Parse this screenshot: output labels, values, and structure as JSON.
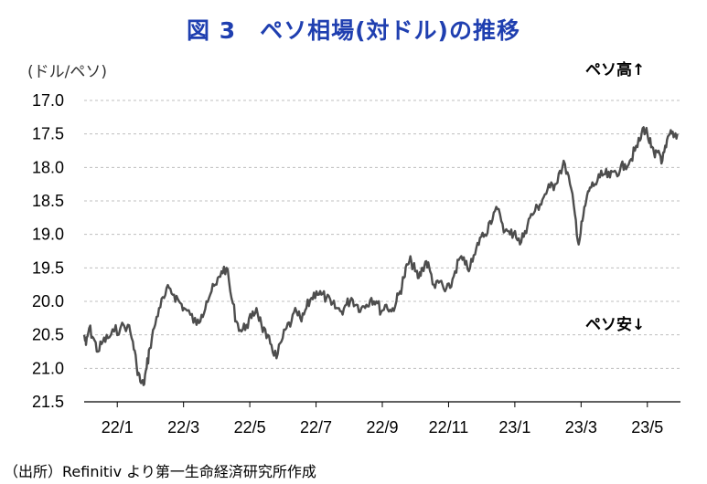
{
  "title": "図 3　ペソ相場(対ドル)の推移",
  "unit_label": "(ドル/ペソ)",
  "annotations": {
    "up": "ペソ高",
    "down": "ペソ安"
  },
  "source": "（出所）Refinitiv より第一生命経済研究所作成",
  "colors": {
    "title": "#1f3fb0",
    "line": "#4d4d4d",
    "grid": "#bfbfbf"
  },
  "chart_data": {
    "type": "line",
    "y_inverted": true,
    "ylim": [
      17.0,
      21.5
    ],
    "yticks": [
      "17.0",
      "17.5",
      "18.0",
      "18.5",
      "19.0",
      "19.5",
      "20.0",
      "20.5",
      "21.0",
      "21.5"
    ],
    "xticks": [
      "22/1",
      "22/3",
      "22/5",
      "22/7",
      "22/9",
      "22/11",
      "23/1",
      "23/3",
      "23/5"
    ],
    "grid": true,
    "series": [
      {
        "values": [
          [
            22.0,
            20.5
          ],
          [
            22.03,
            20.65
          ],
          [
            22.08,
            20.4
          ],
          [
            22.15,
            20.55
          ],
          [
            22.22,
            20.75
          ],
          [
            22.3,
            20.6
          ],
          [
            22.38,
            20.55
          ],
          [
            22.48,
            20.45
          ],
          [
            22.58,
            20.4
          ],
          [
            22.7,
            20.35
          ],
          [
            22.78,
            20.6
          ],
          [
            22.84,
            20.95
          ],
          [
            22.9,
            21.2
          ],
          [
            22.95,
            21.25
          ],
          [
            23.0,
            21.0
          ],
          [
            23.05,
            20.7
          ],
          [
            23.12,
            20.4
          ],
          [
            23.2,
            20.1
          ],
          [
            23.28,
            19.95
          ],
          [
            23.36,
            19.8
          ],
          [
            23.44,
            19.9
          ],
          [
            23.52,
            20.0
          ],
          [
            23.6,
            20.1
          ],
          [
            23.7,
            20.2
          ],
          [
            23.8,
            20.35
          ],
          [
            23.88,
            20.2
          ],
          [
            23.96,
            20.0
          ],
          [
            24.04,
            19.85
          ],
          [
            24.12,
            19.75
          ],
          [
            24.2,
            19.55
          ],
          [
            24.28,
            19.5
          ],
          [
            24.36,
            19.95
          ],
          [
            24.44,
            20.3
          ],
          [
            24.52,
            20.45
          ],
          [
            24.6,
            20.35
          ],
          [
            24.68,
            20.25
          ],
          [
            24.76,
            20.1
          ],
          [
            24.84,
            20.35
          ],
          [
            24.92,
            20.55
          ],
          [
            25.0,
            20.65
          ],
          [
            25.08,
            20.85
          ],
          [
            25.16,
            20.6
          ],
          [
            25.24,
            20.4
          ],
          [
            25.32,
            20.3
          ],
          [
            25.4,
            20.15
          ],
          [
            25.48,
            20.3
          ],
          [
            25.56,
            20.1
          ],
          [
            25.64,
            19.95
          ],
          [
            25.72,
            19.85
          ],
          [
            25.8,
            19.9
          ],
          [
            25.88,
            19.95
          ],
          [
            25.96,
            20.05
          ],
          [
            26.04,
            20.1
          ],
          [
            26.12,
            20.15
          ],
          [
            26.2,
            20.05
          ],
          [
            26.28,
            19.95
          ],
          [
            26.36,
            20.05
          ],
          [
            26.44,
            20.1
          ],
          [
            26.52,
            20.05
          ],
          [
            26.6,
            19.95
          ],
          [
            26.68,
            20.0
          ],
          [
            26.76,
            20.15
          ],
          [
            26.84,
            20.05
          ],
          [
            26.92,
            20.15
          ],
          [
            27.0,
            20.0
          ],
          [
            27.06,
            19.85
          ],
          [
            27.12,
            19.65
          ],
          [
            27.18,
            19.45
          ],
          [
            27.24,
            19.4
          ],
          [
            27.3,
            19.55
          ],
          [
            27.36,
            19.65
          ],
          [
            27.42,
            19.5
          ],
          [
            27.48,
            19.4
          ],
          [
            27.54,
            19.55
          ],
          [
            27.62,
            19.8
          ],
          [
            27.7,
            19.7
          ],
          [
            27.78,
            19.85
          ],
          [
            27.86,
            19.8
          ],
          [
            27.94,
            19.55
          ],
          [
            28.02,
            19.35
          ],
          [
            28.1,
            19.45
          ],
          [
            28.18,
            19.5
          ],
          [
            28.26,
            19.3
          ],
          [
            28.34,
            19.05
          ],
          [
            28.42,
            19.0
          ],
          [
            28.5,
            18.8
          ],
          [
            28.58,
            18.65
          ],
          [
            28.66,
            18.7
          ],
          [
            28.74,
            18.95
          ],
          [
            28.82,
            19.0
          ],
          [
            28.9,
            18.95
          ],
          [
            28.98,
            19.15
          ],
          [
            29.06,
            18.95
          ],
          [
            29.14,
            18.75
          ],
          [
            29.22,
            18.65
          ],
          [
            29.3,
            18.55
          ],
          [
            29.38,
            18.4
          ],
          [
            29.46,
            18.3
          ],
          [
            29.54,
            18.25
          ],
          [
            29.62,
            18.05
          ],
          [
            29.7,
            17.95
          ],
          [
            29.78,
            18.25
          ],
          [
            29.86,
            18.7
          ],
          [
            29.92,
            19.15
          ],
          [
            29.98,
            18.8
          ],
          [
            30.04,
            18.5
          ],
          [
            30.1,
            18.3
          ],
          [
            30.18,
            18.25
          ],
          [
            30.26,
            18.15
          ],
          [
            30.34,
            18.1
          ],
          [
            30.42,
            18.15
          ],
          [
            30.5,
            18.05
          ],
          [
            30.58,
            18.05
          ],
          [
            30.66,
            17.95
          ],
          [
            30.74,
            17.9
          ],
          [
            30.82,
            17.75
          ],
          [
            30.9,
            17.6
          ],
          [
            30.96,
            17.4
          ],
          [
            31.02,
            17.5
          ],
          [
            31.08,
            17.7
          ],
          [
            31.14,
            17.85
          ],
          [
            31.2,
            17.75
          ],
          [
            31.26,
            17.9
          ],
          [
            31.32,
            17.7
          ],
          [
            31.38,
            17.5
          ],
          [
            31.44,
            17.55
          ],
          [
            31.5,
            17.5
          ]
        ]
      }
    ]
  }
}
